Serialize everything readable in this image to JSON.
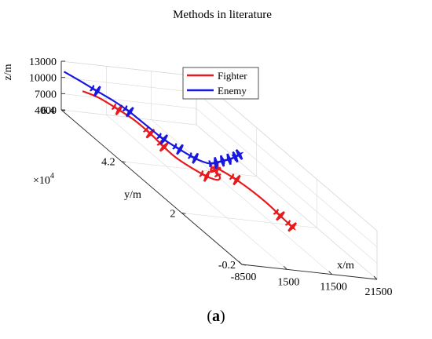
{
  "figure": {
    "caption_open": "(",
    "caption_letter": "a",
    "caption_close": ")"
  },
  "chart_data": {
    "type": "line",
    "title": "Methods in literature",
    "xlabel": "x/m",
    "ylabel": "y/m",
    "zlabel": "z/m",
    "y_exponent_base": "×10",
    "y_exponent_power": "4",
    "x_ticks": [
      "-8500",
      "1500",
      "11500",
      "21500"
    ],
    "y_ticks": [
      "-0.2",
      "2",
      "4.2",
      "6.4"
    ],
    "z_ticks": [
      "4000",
      "7000",
      "10000",
      "13000"
    ],
    "xlim": [
      -8500,
      21500
    ],
    "ylim": [
      -0.2,
      6.4
    ],
    "zlim": [
      4000,
      13000
    ],
    "grid": true,
    "legend_position": "upper-center",
    "series": [
      {
        "name": "Fighter",
        "color": "#e8191c",
        "points": [
          [
            -6200,
            6.0,
            9400
          ],
          [
            -3900,
            5.8,
            9300
          ],
          [
            -1900,
            5.4,
            9000
          ],
          [
            -500,
            5.05,
            8700
          ],
          [
            200,
            4.6,
            8300
          ],
          [
            200,
            4.1,
            8000
          ],
          [
            700,
            3.75,
            7600
          ],
          [
            2200,
            3.45,
            7200
          ],
          [
            4200,
            3.2,
            6800
          ],
          [
            6300,
            3.15,
            6500
          ],
          [
            8200,
            3.35,
            6300
          ],
          [
            9400,
            3.7,
            6100
          ],
          [
            10400,
            3.85,
            6000
          ],
          [
            11300,
            3.75,
            5900
          ],
          [
            12400,
            3.45,
            5800
          ],
          [
            13300,
            3.0,
            5650
          ],
          [
            13700,
            2.5,
            5500
          ],
          [
            13600,
            2.05,
            5350
          ],
          [
            13500,
            1.6,
            5250
          ]
        ],
        "marker_indices": [
          2,
          4,
          5,
          8,
          11,
          12,
          14,
          17,
          18
        ]
      },
      {
        "name": "Enemy",
        "color": "#1717e0",
        "points": [
          [
            -8500,
            6.3,
            11500
          ],
          [
            -6300,
            6.05,
            11000
          ],
          [
            -4300,
            5.8,
            10500
          ],
          [
            -2200,
            5.55,
            10000
          ],
          [
            -700,
            5.2,
            9600
          ],
          [
            200,
            4.7,
            9200
          ],
          [
            1100,
            4.25,
            8800
          ],
          [
            2800,
            3.95,
            8400
          ],
          [
            4700,
            3.7,
            8000
          ],
          [
            6900,
            3.6,
            7700
          ],
          [
            9200,
            3.7,
            7500
          ],
          [
            11600,
            3.85,
            7400
          ],
          [
            14000,
            4.0,
            7300
          ],
          [
            16300,
            4.15,
            7250
          ],
          [
            18100,
            4.3,
            7200
          ]
        ],
        "marker_indices": [
          2,
          4,
          6,
          7,
          8,
          10,
          11,
          12,
          13,
          14
        ]
      }
    ]
  }
}
